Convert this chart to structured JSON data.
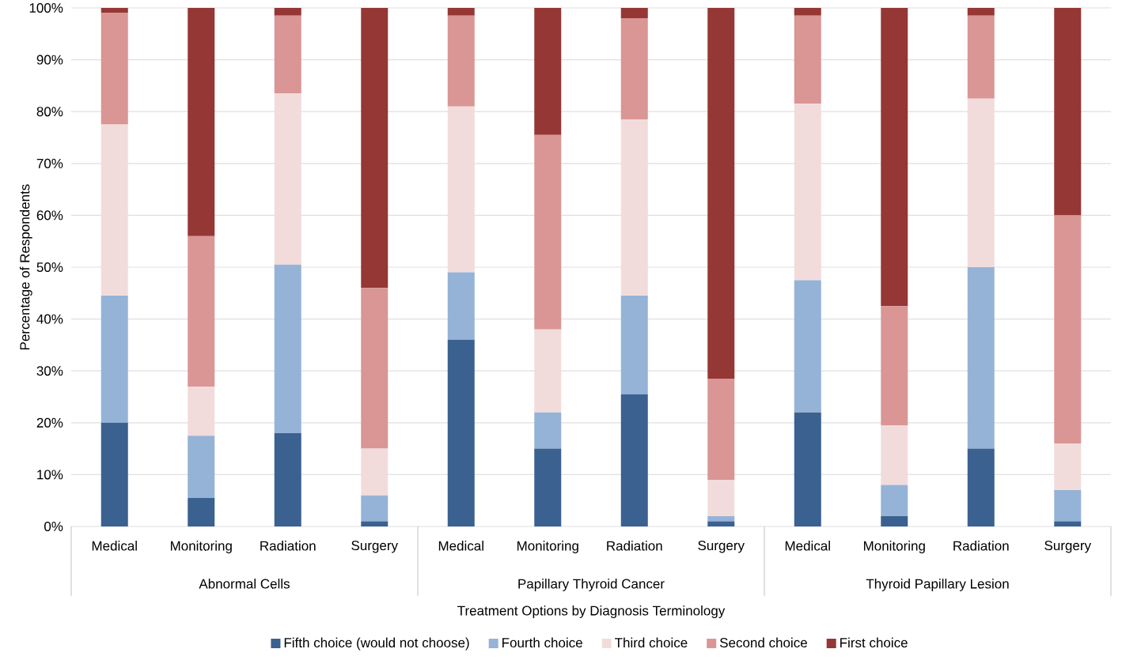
{
  "chart_data": {
    "type": "bar",
    "stacked": true,
    "xlabel": "Treatment Options by Diagnosis Terminology",
    "ylabel": "Percentage of Respondents",
    "categories": [
      "Medical",
      "Monitoring",
      "Radiation",
      "Surgery",
      "Medical",
      "Monitoring",
      "Radiation",
      "Surgery",
      "Medical",
      "Monitoring",
      "Radiation",
      "Surgery"
    ],
    "annotations": [
      "Abnormal Cells",
      "Papillary Thyroid Cancer",
      "Thyroid Papillary Lesion"
    ],
    "ylim": [
      0,
      100
    ],
    "yticks": [
      {
        "value": 0,
        "label": "0%"
      },
      {
        "value": 10,
        "label": "10%"
      },
      {
        "value": 20,
        "label": "20%"
      },
      {
        "value": 30,
        "label": "30%"
      },
      {
        "value": 40,
        "label": "40%"
      },
      {
        "value": 50,
        "label": "50%"
      },
      {
        "value": 60,
        "label": "60%"
      },
      {
        "value": 70,
        "label": "70%"
      },
      {
        "value": 80,
        "label": "80%"
      },
      {
        "value": 90,
        "label": "90%"
      },
      {
        "value": 100,
        "label": "100%"
      }
    ],
    "grid": "y",
    "legend": "bottom",
    "series": [
      {
        "name": "Fifth choice (would not choose)",
        "color": "#3a6190",
        "values": [
          20,
          5.5,
          18,
          1,
          36,
          15,
          25.5,
          1,
          22,
          2,
          15,
          1
        ]
      },
      {
        "name": "Fourth choice",
        "color": "#95b3d7",
        "values": [
          24.5,
          12,
          32.5,
          5,
          13,
          7,
          19,
          1,
          25.5,
          6,
          35,
          6
        ]
      },
      {
        "name": "Third choice",
        "color": "#f2dcdb",
        "values": [
          33,
          9.5,
          33,
          9,
          32,
          16,
          34,
          7,
          34,
          11.5,
          32.5,
          9
        ]
      },
      {
        "name": "Second choice",
        "color": "#d99694",
        "values": [
          21.5,
          29,
          15,
          31,
          17.5,
          37.5,
          19.5,
          19.5,
          17,
          23,
          16,
          44
        ]
      },
      {
        "name": "First choice",
        "color": "#953735",
        "values": [
          1,
          44,
          1.5,
          54,
          1.5,
          24.5,
          2,
          71.5,
          1.5,
          57.5,
          1.5,
          40
        ]
      }
    ]
  }
}
